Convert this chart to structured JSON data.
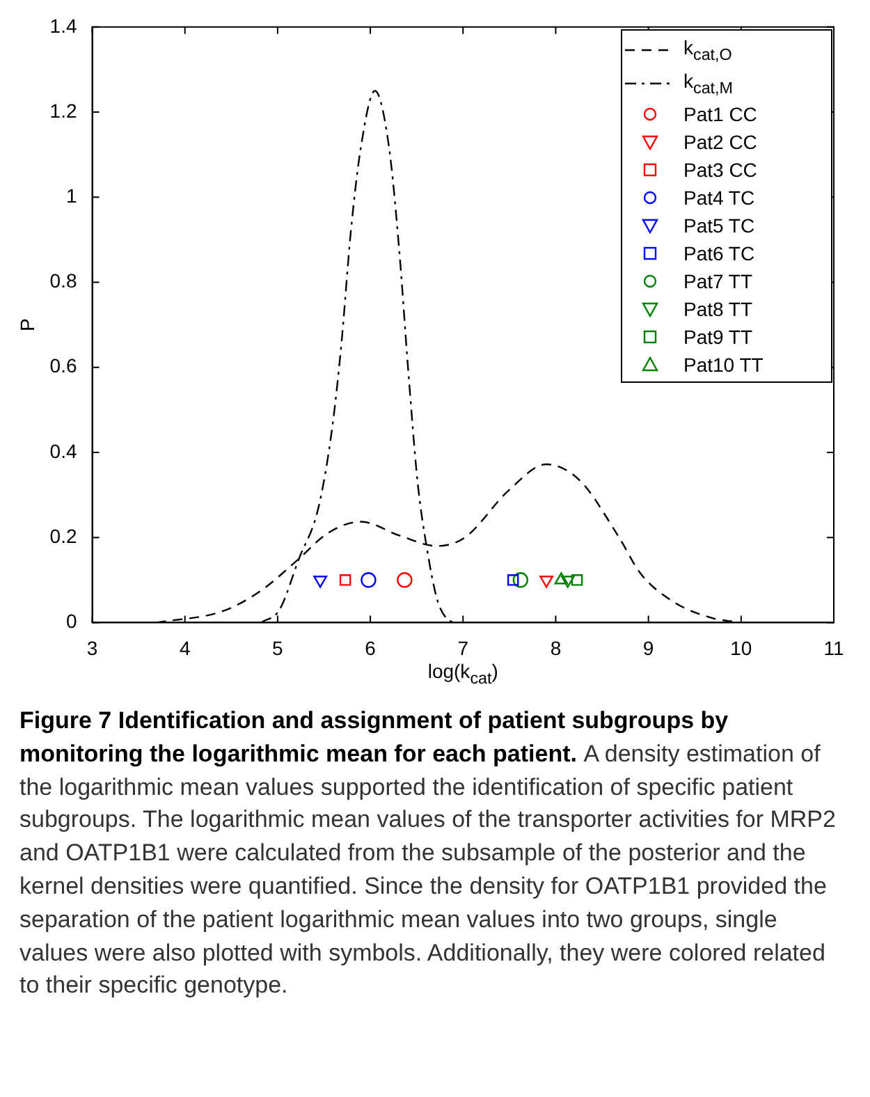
{
  "chart_data": {
    "type": "line",
    "xlabel": "log(k$_{cat}$)",
    "ylabel": "P",
    "xlim": [
      3,
      11
    ],
    "xticks": [
      3,
      4,
      5,
      6,
      7,
      8,
      9,
      10,
      11
    ],
    "ylim": [
      0,
      1.4
    ],
    "yticks": [
      0,
      0.2,
      0.4,
      0.6,
      0.8,
      1,
      1.2,
      1.4
    ],
    "grid": false,
    "legend": "top right",
    "series": [
      {
        "name": "k$_{cat,O}$",
        "line_style": "dashed",
        "marker": "none",
        "color": "#000000",
        "x": [
          3.69,
          4.41,
          4.82,
          5.23,
          5.54,
          5.9,
          6.31,
          6.72,
          7.02,
          7.49,
          7.9,
          8.26,
          8.67,
          8.92,
          9.3,
          9.7,
          10.0
        ],
        "values": [
          0,
          0.027,
          0.075,
          0.15,
          0.21,
          0.237,
          0.205,
          0.18,
          0.2,
          0.31,
          0.372,
          0.334,
          0.205,
          0.114,
          0.045,
          0.01,
          0
        ]
      },
      {
        "name": "k$_{cat,M}$",
        "line_style": "dashdot",
        "marker": "none",
        "color": "#000000",
        "x": [
          4.82,
          5.02,
          5.23,
          5.44,
          5.59,
          5.69,
          5.79,
          5.9,
          6.05,
          6.2,
          6.31,
          6.41,
          6.51,
          6.61,
          6.72,
          6.82,
          6.9
        ],
        "values": [
          0,
          0.03,
          0.15,
          0.27,
          0.46,
          0.66,
          0.92,
          1.12,
          1.25,
          1.12,
          0.88,
          0.59,
          0.33,
          0.175,
          0.055,
          0.01,
          0
        ]
      },
      {
        "name": "Pat1 CC",
        "type": "scatter",
        "marker": "circle",
        "color": "#ff0000",
        "x": [
          6.37
        ],
        "values": [
          0.1
        ]
      },
      {
        "name": "Pat2 CC",
        "type": "scatter",
        "marker": "triangle-down",
        "color": "#ff0000",
        "x": [
          7.9
        ],
        "values": [
          0.1
        ]
      },
      {
        "name": "Pat3 CC",
        "type": "scatter",
        "marker": "square",
        "color": "#ff0000",
        "x": [
          5.73
        ],
        "values": [
          0.1
        ]
      },
      {
        "name": "Pat4 TC",
        "type": "scatter",
        "marker": "circle",
        "color": "#0000ff",
        "x": [
          5.98
        ],
        "values": [
          0.1
        ]
      },
      {
        "name": "Pat5 TC",
        "type": "scatter",
        "marker": "triangle-down",
        "color": "#0000ff",
        "x": [
          5.46
        ],
        "values": [
          0.1
        ]
      },
      {
        "name": "Pat6 TC",
        "type": "scatter",
        "marker": "square",
        "color": "#0000ff",
        "x": [
          7.54
        ],
        "values": [
          0.1
        ]
      },
      {
        "name": "Pat7 TT",
        "type": "scatter",
        "marker": "circle",
        "color": "#008000",
        "x": [
          7.62
        ],
        "values": [
          0.1
        ]
      },
      {
        "name": "Pat8 TT",
        "type": "scatter",
        "marker": "triangle-down",
        "color": "#008000",
        "x": [
          8.13
        ],
        "values": [
          0.1
        ]
      },
      {
        "name": "Pat9 TT",
        "type": "scatter",
        "marker": "square",
        "color": "#008000",
        "x": [
          8.23
        ],
        "values": [
          0.1
        ]
      },
      {
        "name": "Pat10 TT",
        "type": "scatter",
        "marker": "triangle",
        "color": "#008000",
        "x": [
          8.06
        ],
        "values": [
          0.1
        ]
      }
    ],
    "annotations": [
      "Figure 7 Identification and assignment of patient subgroups by monitoring the logarithmic mean for each patient.",
      "A density estimation of the logarithmic mean values supported the identification of specific patient subgroups. The logarithmic mean values of the transporter activities for MRP2 and OATP1B1 were calculated from the subsample of the posterior and the kernel densities were quantified. Since the density for OATP1B1 provided the separation of the patient logarithmic mean values into two groups, single values were also plotted with symbols. Additionally, they were colored related to their specific genotype."
    ]
  }
}
